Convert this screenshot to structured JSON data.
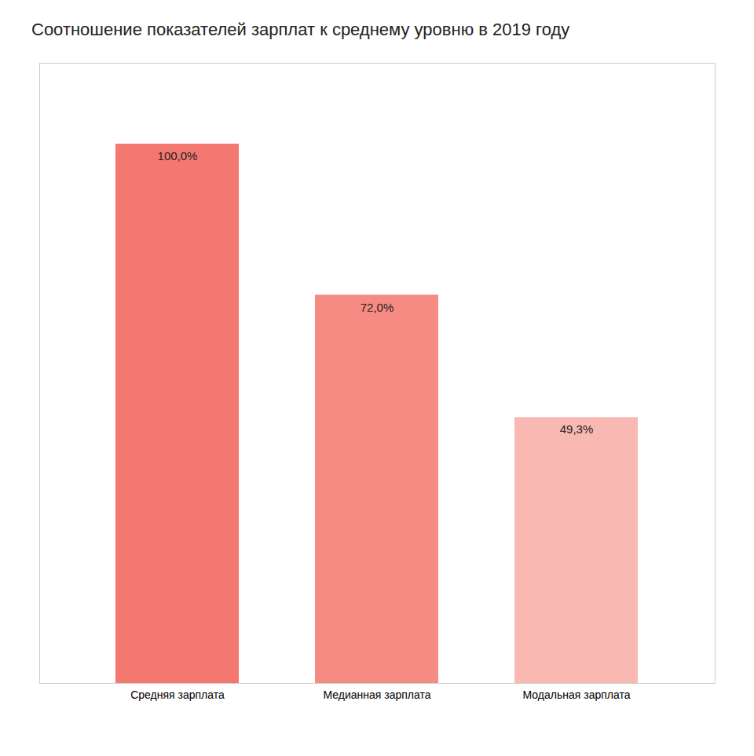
{
  "chart_data": {
    "type": "bar",
    "title": "Соотношение показателей зарплат к среднему уровню в 2019 году",
    "categories": [
      "Средняя зарплата",
      "Медианная зарплата",
      "Модальная зарплата"
    ],
    "values": [
      100.0,
      72.0,
      49.3
    ],
    "value_labels": [
      "100,0%",
      "72,0%",
      "49,3%"
    ],
    "colors": [
      "#F47870",
      "#F58B82",
      "#F9B8B2"
    ],
    "ylim": [
      0,
      115
    ],
    "yticks": [],
    "grid": false,
    "data_labels": true,
    "tick_labels": "x"
  }
}
